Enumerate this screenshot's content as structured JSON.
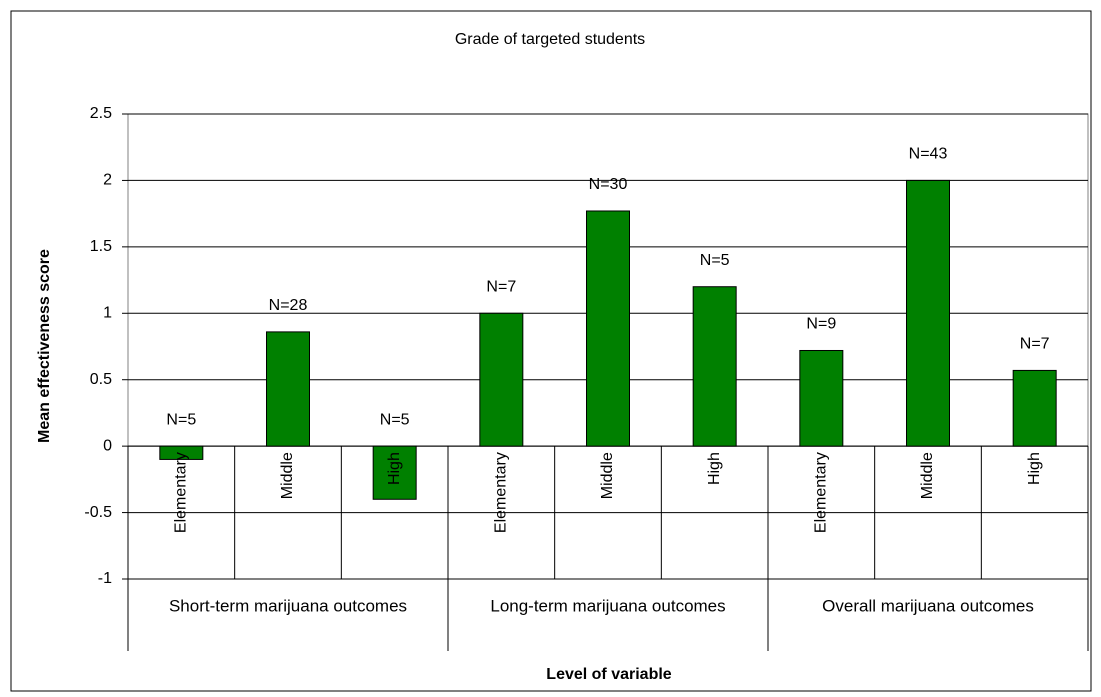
{
  "chart_data": {
    "type": "bar",
    "title": "Grade of targeted students",
    "xlabel": "Level of variable",
    "ylabel": "Mean effectiveness score",
    "categories": [
      "Elementary",
      "Middle",
      "High",
      "Elementary",
      "Middle",
      "High",
      "Elementary",
      "Middle",
      "High"
    ],
    "groups": [
      "Short-term marijuana outcomes",
      "Long-term marijuana outcomes",
      "Overall marijuana outcomes"
    ],
    "values": [
      -0.1,
      0.86,
      -0.4,
      1.0,
      1.77,
      1.2,
      0.72,
      2.0,
      0.57
    ],
    "annotations": [
      "N=5",
      "N=28",
      "N=5",
      "N=7",
      "N=30",
      "N=5",
      "N=9",
      "N=43",
      "N=7"
    ],
    "color": "#008000",
    "ylim": [
      -1,
      2.5
    ],
    "yticks": [
      -1,
      -0.5,
      0,
      0.5,
      1,
      1.5,
      2,
      2.5
    ],
    "grid": true
  }
}
